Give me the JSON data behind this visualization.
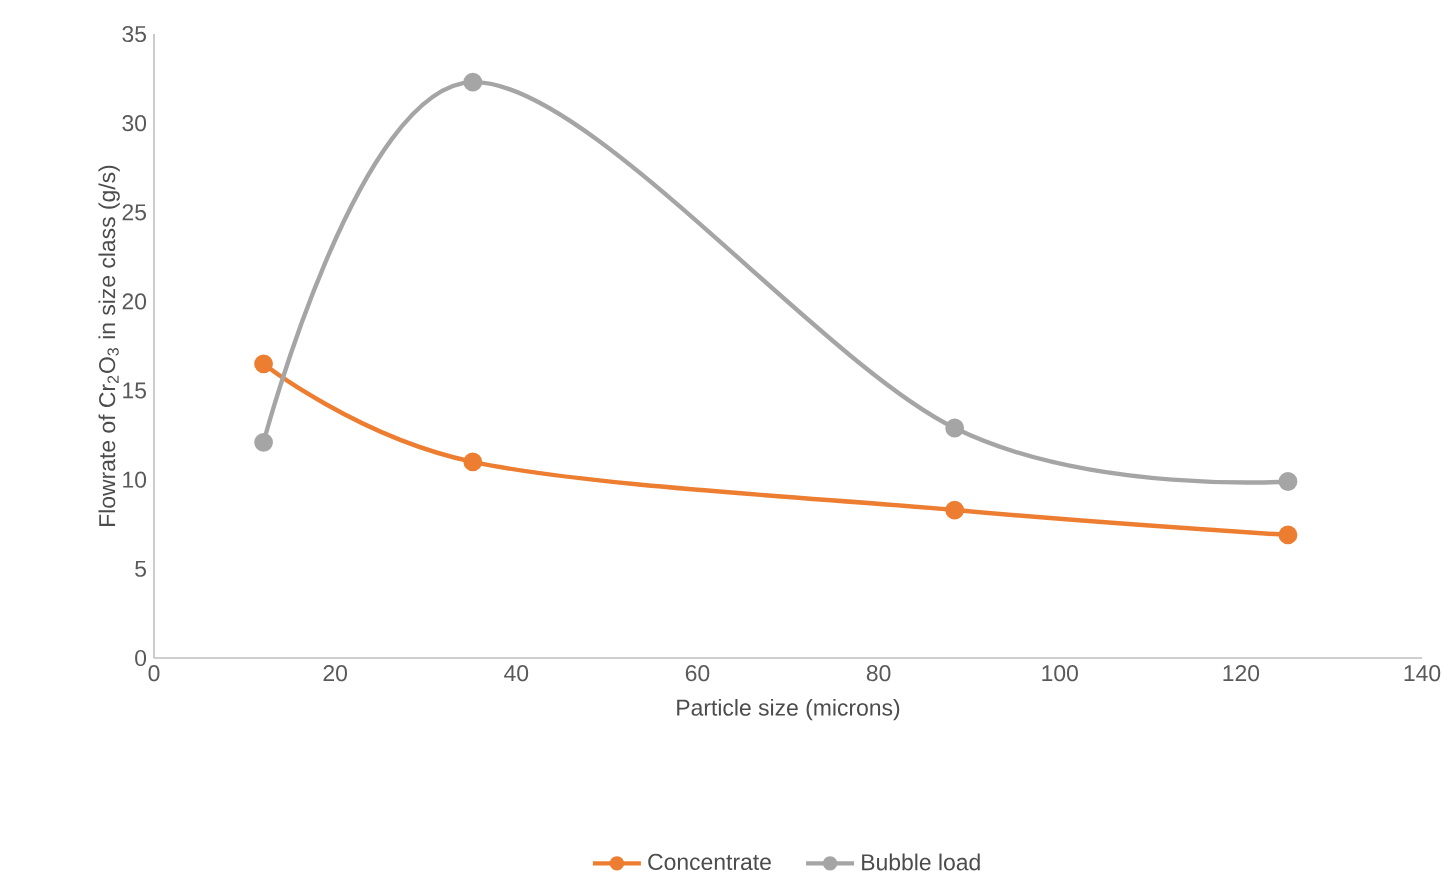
{
  "chart_data": {
    "type": "line",
    "xlabel": "Particle size (microns)",
    "ylabel": "Flowrate of Cr$_{2}$O$_{3}$ in size class (g/s)",
    "x": [
      12.1,
      35.2,
      88.4,
      125.2
    ],
    "series": [
      {
        "name": "Concentrate",
        "color": "#ed7d31",
        "values": [
          16.5,
          11.0,
          8.3,
          6.9
        ]
      },
      {
        "name": "Bubble load",
        "color": "#a5a5a5",
        "values": [
          12.1,
          32.3,
          12.9,
          9.9
        ]
      }
    ],
    "xlim": [
      0,
      140
    ],
    "xticks": [
      0,
      20,
      40,
      60,
      80,
      100,
      120,
      140
    ],
    "ylim": [
      0,
      35
    ],
    "yticks": [
      0,
      5,
      10,
      15,
      20,
      25,
      30,
      35
    ],
    "grid": false,
    "legend": "bottom",
    "marker": "circle",
    "line_style": "solid"
  }
}
